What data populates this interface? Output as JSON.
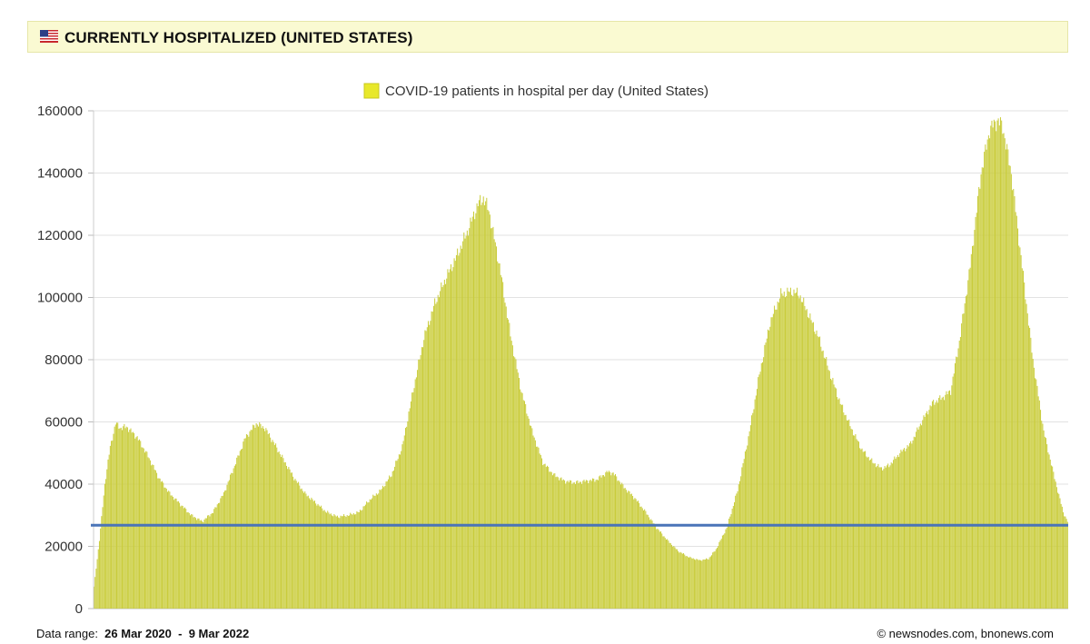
{
  "header": {
    "title": "CURRENTLY HOSPITALIZED (UNITED STATES)"
  },
  "chart_data": {
    "type": "bar",
    "legend": "COVID-19 patients in hospital per day (United States)",
    "bar_color": "#c9cc3a",
    "legend_color": "#e8e82a",
    "line_color": "#4a74b8",
    "y_ticks": [
      "0",
      "20000",
      "40000",
      "60000",
      "80000",
      "100000",
      "120000",
      "140000",
      "160000"
    ],
    "ylim": [
      0,
      160000
    ],
    "grid": true,
    "reference_line": 26800,
    "x_start": "26 Mar 2020",
    "x_end": "9 Mar 2022",
    "anchors": [
      [
        0,
        7000
      ],
      [
        5,
        22000
      ],
      [
        10,
        40000
      ],
      [
        15,
        52000
      ],
      [
        20,
        59500
      ],
      [
        25,
        58000
      ],
      [
        30,
        58500
      ],
      [
        40,
        55000
      ],
      [
        50,
        49000
      ],
      [
        60,
        42000
      ],
      [
        70,
        37000
      ],
      [
        80,
        33500
      ],
      [
        90,
        30000
      ],
      [
        100,
        28000
      ],
      [
        110,
        31000
      ],
      [
        120,
        37000
      ],
      [
        130,
        46000
      ],
      [
        140,
        55000
      ],
      [
        150,
        59500
      ],
      [
        158,
        58000
      ],
      [
        165,
        54000
      ],
      [
        175,
        48000
      ],
      [
        185,
        42000
      ],
      [
        195,
        37000
      ],
      [
        205,
        34000
      ],
      [
        215,
        31000
      ],
      [
        225,
        29500
      ],
      [
        235,
        30000
      ],
      [
        245,
        31000
      ],
      [
        255,
        35000
      ],
      [
        265,
        38000
      ],
      [
        275,
        43000
      ],
      [
        285,
        52000
      ],
      [
        295,
        70000
      ],
      [
        305,
        87000
      ],
      [
        315,
        98000
      ],
      [
        325,
        106000
      ],
      [
        335,
        113000
      ],
      [
        345,
        121000
      ],
      [
        355,
        130000
      ],
      [
        360,
        132000
      ],
      [
        365,
        128000
      ],
      [
        375,
        110000
      ],
      [
        385,
        88000
      ],
      [
        395,
        70000
      ],
      [
        405,
        57000
      ],
      [
        415,
        47000
      ],
      [
        425,
        43000
      ],
      [
        435,
        41000
      ],
      [
        445,
        40500
      ],
      [
        455,
        41000
      ],
      [
        465,
        41500
      ],
      [
        475,
        44000
      ],
      [
        480,
        43500
      ],
      [
        490,
        39000
      ],
      [
        500,
        35500
      ],
      [
        510,
        31000
      ],
      [
        520,
        26000
      ],
      [
        530,
        22000
      ],
      [
        540,
        18500
      ],
      [
        550,
        16500
      ],
      [
        560,
        15500
      ],
      [
        568,
        16000
      ],
      [
        575,
        19000
      ],
      [
        585,
        26000
      ],
      [
        595,
        38000
      ],
      [
        605,
        55000
      ],
      [
        615,
        75000
      ],
      [
        625,
        92000
      ],
      [
        635,
        101000
      ],
      [
        645,
        102000
      ],
      [
        652,
        101000
      ],
      [
        660,
        95000
      ],
      [
        670,
        87000
      ],
      [
        680,
        76000
      ],
      [
        690,
        66000
      ],
      [
        700,
        58000
      ],
      [
        710,
        51000
      ],
      [
        720,
        47000
      ],
      [
        728,
        45000
      ],
      [
        735,
        46000
      ],
      [
        745,
        50000
      ],
      [
        755,
        53000
      ],
      [
        765,
        60000
      ],
      [
        775,
        66000
      ],
      [
        785,
        68000
      ],
      [
        792,
        70000
      ],
      [
        800,
        86000
      ],
      [
        810,
        110000
      ],
      [
        820,
        140000
      ],
      [
        828,
        154000
      ],
      [
        835,
        157000
      ],
      [
        840,
        155000
      ],
      [
        848,
        140000
      ],
      [
        858,
        110000
      ],
      [
        868,
        80000
      ],
      [
        878,
        57000
      ],
      [
        888,
        42000
      ],
      [
        896,
        31000
      ],
      [
        900,
        28000
      ]
    ]
  },
  "footer": {
    "range_label": "Data range:",
    "range_start": "26 Mar 2020",
    "range_sep": "-",
    "range_end": "9 Mar 2022",
    "copyright": "©  newsnodes.com, bnonews.com"
  }
}
